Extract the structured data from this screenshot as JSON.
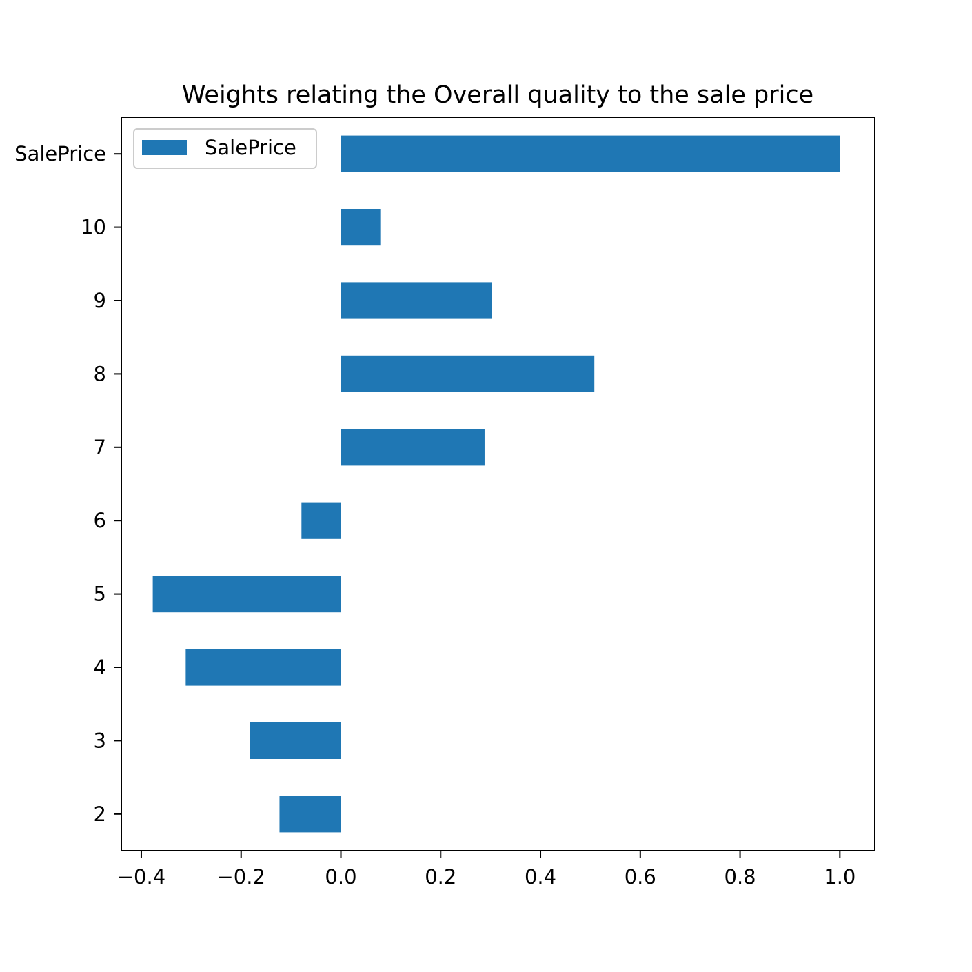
{
  "chart_data": {
    "type": "bar",
    "orientation": "horizontal",
    "title": "Weights relating the Overall quality to the sale price",
    "xlabel": "",
    "ylabel": "",
    "categories": [
      "2",
      "3",
      "4",
      "5",
      "6",
      "7",
      "8",
      "9",
      "10",
      "SalePrice"
    ],
    "series": [
      {
        "name": "SalePrice",
        "color": "#1f77b4",
        "values": [
          -0.123,
          -0.183,
          -0.311,
          -0.377,
          -0.079,
          0.288,
          0.508,
          0.302,
          0.079,
          1.0
        ]
      }
    ],
    "xlim": [
      -0.44,
      1.07
    ],
    "xticks": [
      -0.4,
      -0.2,
      0.0,
      0.2,
      0.4,
      0.6,
      0.8,
      1.0
    ],
    "xtick_labels": [
      "−0.4",
      "−0.2",
      "0.0",
      "0.2",
      "0.4",
      "0.6",
      "0.8",
      "1.0"
    ],
    "grid": false,
    "legend": {
      "placement": "upper-left",
      "entries": [
        "SalePrice"
      ]
    }
  }
}
